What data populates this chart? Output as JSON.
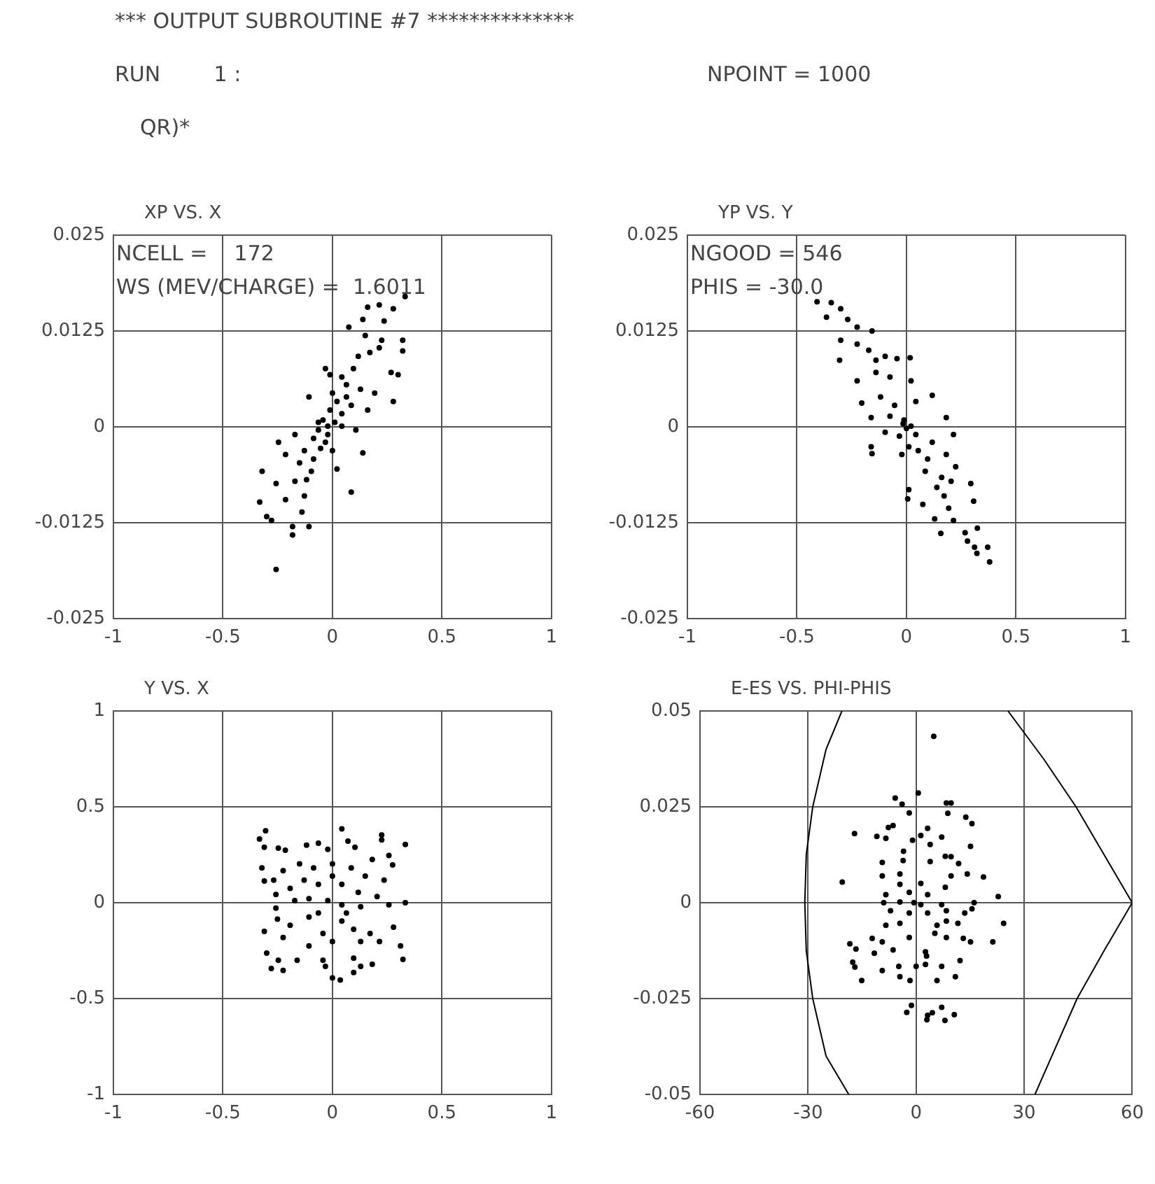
{
  "chart_data": [
    {
      "type": "other",
      "title": "*** OUTPUT SUBROUTINE #7 **************",
      "annotations": [
        "RUN        1 :",
        "NPOINT = 1000",
        "QR)*"
      ]
    },
    {
      "type": "scatter",
      "title": "XP VS. X",
      "color": "#000000",
      "marker": "circle",
      "xlim": [
        -1,
        1
      ],
      "ylim": [
        -0.025,
        0.025
      ],
      "xticks": [
        -1,
        -0.5,
        0,
        0.5,
        1
      ],
      "yticks": [
        -0.025,
        -0.0125,
        0,
        0.0125,
        0.025
      ],
      "grid": true,
      "annotations": [
        "NCELL =    172",
        "WS (MEV/CHARGE) =  1.6011"
      ],
      "x": [
        0.332,
        0.161,
        0.214,
        0.278,
        0.139,
        0.236,
        0.15,
        0.225,
        0.321,
        0.321,
        0.171,
        0.118,
        0.075,
        0.214,
        0.268,
        0.3,
        0.096,
        0.043,
        -0.032,
        -0.011,
        0.064,
        0.128,
        0.193,
        0.278,
        -0.107,
        0,
        0.021,
        0.086,
        0.161,
        -0.011,
        -0.043,
        0.011,
        0.043,
        0.107,
        0.139,
        -0.064,
        -0.021,
        -0.086,
        -0.032,
        -0.054,
        0,
        0.021,
        0.086,
        -0.171,
        -0.246,
        -0.214,
        -0.128,
        -0.086,
        -0.15,
        -0.096,
        -0.118,
        -0.321,
        -0.257,
        -0.171,
        -0.214,
        -0.128,
        -0.332,
        -0.3,
        -0.278,
        -0.139,
        -0.182,
        -0.182,
        -0.107,
        -0.257,
        -0.064,
        -0.021,
        0.043,
        0.064
      ],
      "values": [
        0.017,
        0.0156,
        0.0159,
        0.0154,
        0.014,
        0.0138,
        0.0119,
        0.0113,
        0.0113,
        0.0099,
        0.0097,
        0.0092,
        0.013,
        0.0103,
        0.0071,
        0.0068,
        0.0076,
        0.0065,
        0.0076,
        0.0068,
        0.0055,
        0.0049,
        0.0044,
        0.0033,
        0.0039,
        0.0044,
        0.0033,
        0.0028,
        0.0022,
        0.0022,
        0.0009,
        0.0006,
        0.0001,
        -0.0004,
        -0.0034,
        -0.0004,
        -0.001,
        -0.0015,
        -0.002,
        -0.0028,
        -0.0031,
        -0.0055,
        -0.0085,
        -0.001,
        -0.002,
        -0.0036,
        -0.0031,
        -0.0042,
        -0.0047,
        -0.0058,
        -0.0069,
        -0.0058,
        -0.0074,
        -0.0071,
        -0.0095,
        -0.009,
        -0.0098,
        -0.0117,
        -0.0122,
        -0.0111,
        -0.013,
        -0.0141,
        -0.013,
        -0.0186,
        0.0006,
        0.0001,
        0.0017,
        0.0039
      ]
    },
    {
      "type": "scatter",
      "title": "YP VS. Y",
      "color": "#000000",
      "marker": "circle",
      "xlim": [
        -1,
        1
      ],
      "ylim": [
        -0.025,
        0.025
      ],
      "xticks": [
        -1,
        -0.5,
        0,
        0.5,
        1
      ],
      "yticks": [
        -0.025,
        -0.0125,
        0,
        0.0125,
        0.025
      ],
      "grid": true,
      "annotations": [
        "NGOOD = 546",
        "PHIS = -30.0"
      ],
      "x": [
        -0.408,
        -0.343,
        -0.3,
        -0.365,
        -0.268,
        -0.225,
        -0.157,
        -0.3,
        -0.225,
        -0.172,
        -0.305,
        -0.139,
        -0.097,
        -0.043,
        0.017,
        -0.225,
        -0.139,
        -0.075,
        0.021,
        0.118,
        -0.204,
        -0.118,
        -0.054,
        0.043,
        -0.161,
        -0.075,
        -0.011,
        0.021,
        0.182,
        -0.097,
        -0.032,
        0.043,
        0.118,
        0.215,
        -0.161,
        -0.157,
        -0.021,
        0.054,
        0.097,
        0.182,
        0.011,
        0.086,
        0.225,
        0.161,
        0.011,
        0.006,
        0.075,
        0.139,
        0.204,
        0.294,
        0.307,
        0.172,
        0.193,
        0.215,
        0.129,
        0.157,
        0.268,
        0.279,
        0.324,
        0.311,
        0.371,
        0.38,
        0.322,
        0,
        -0.015
      ],
      "values": [
        0.0163,
        0.0162,
        0.0154,
        0.0143,
        0.014,
        0.013,
        0.0125,
        0.0113,
        0.0108,
        0.01,
        0.0087,
        0.0087,
        0.0092,
        0.0089,
        0.009,
        0.006,
        0.0071,
        0.0065,
        0.006,
        0.0041,
        0.0031,
        0.0039,
        0.0028,
        0.0033,
        0.0012,
        0.0014,
        0.0009,
        0.0001,
        0.0012,
        -0.0007,
        -0.0012,
        -0.001,
        -0.002,
        -0.001,
        -0.0026,
        -0.0035,
        -0.0036,
        -0.0031,
        -0.0042,
        -0.0036,
        -0.0026,
        -0.0058,
        -0.0052,
        -0.0066,
        -0.0082,
        -0.0094,
        -0.0101,
        -0.0079,
        -0.0071,
        -0.0074,
        -0.0097,
        -0.009,
        -0.0106,
        -0.0122,
        -0.012,
        -0.0139,
        -0.0138,
        -0.0149,
        -0.0132,
        -0.0157,
        -0.0157,
        -0.0176,
        -0.0165,
        -0.0002,
        0.0004
      ]
    },
    {
      "type": "scatter",
      "title": "Y VS. X",
      "color": "#000000",
      "marker": "circle",
      "xlim": [
        -1,
        1
      ],
      "ylim": [
        -1,
        1
      ],
      "xticks": [
        -1,
        -0.5,
        0,
        0.5,
        1
      ],
      "yticks": [
        -1,
        -0.5,
        0,
        0.5,
        1
      ],
      "grid": true,
      "x": [
        -0.305,
        -0.333,
        -0.311,
        -0.247,
        -0.215,
        -0.118,
        -0.064,
        -0.021,
        0.043,
        0.071,
        0.103,
        0.225,
        0.225,
        0.333,
        0.182,
        0.258,
        0.275,
        -0.322,
        -0.225,
        -0.15,
        -0.086,
        0,
        0.086,
        0.15,
        0.236,
        -0.311,
        -0.268,
        -0.258,
        -0.193,
        -0.129,
        -0.064,
        0,
        0.043,
        0.118,
        0.204,
        0.333,
        -0.258,
        -0.172,
        -0.107,
        -0.021,
        0.043,
        0.129,
        0.258,
        -0.251,
        -0.193,
        -0.107,
        -0.043,
        0.043,
        0.097,
        0.172,
        0.279,
        -0.311,
        -0.225,
        -0.107,
        0,
        0.129,
        0.215,
        0.311,
        0.322,
        -0.3,
        -0.247,
        -0.279,
        -0.225,
        -0.161,
        -0.043,
        -0.032,
        0,
        0.036,
        0.097,
        0.097,
        0.129,
        0.182,
        -0.064,
        0.064
      ],
      "values": [
        0.375,
        0.332,
        0.289,
        0.285,
        0.274,
        0.3,
        0.31,
        0.278,
        0.385,
        0.321,
        0.289,
        0.353,
        0.328,
        0.304,
        0.225,
        0.246,
        0.197,
        0.182,
        0.167,
        0.203,
        0.182,
        0.203,
        0.182,
        0.139,
        0.118,
        0.113,
        0.118,
        0.043,
        0.075,
        0.118,
        0.096,
        0.139,
        0.096,
        0.054,
        0.032,
        0,
        -0.028,
        0.011,
        0.021,
        0.011,
        -0.011,
        -0.021,
        -0.011,
        -0.086,
        -0.118,
        -0.075,
        -0.161,
        -0.096,
        -0.139,
        -0.161,
        -0.128,
        -0.15,
        -0.182,
        -0.225,
        -0.203,
        -0.203,
        -0.203,
        -0.225,
        -0.296,
        -0.263,
        -0.3,
        -0.343,
        -0.353,
        -0.3,
        -0.3,
        -0.332,
        -0.392,
        -0.403,
        -0.289,
        -0.364,
        -0.332,
        -0.321,
        -0.054,
        -0.054
      ]
    },
    {
      "type": "scatter",
      "title": "E-ES VS. PHI-PHIS",
      "marker": "circle",
      "xlim": [
        -60,
        60
      ],
      "ylim": [
        -0.05,
        0.05
      ],
      "xticks": [
        -60,
        -30,
        0,
        30,
        60
      ],
      "yticks": [
        -0.05,
        -0.025,
        0,
        0.025,
        0.05
      ],
      "grid": true,
      "series": [
        {
          "type": "scatter",
          "color": "#000000",
          "x": [
            4.9,
            -5.8,
            -3.9,
            0.6,
            8.4,
            9.7,
            -1.9,
            8.8,
            -17.1,
            -10.9,
            -8.4,
            -7.7,
            -6.4,
            3.2,
            7.1,
            13.8,
            15.5,
            -1.0,
            1.3,
            3.9,
            15.1,
            -3.5,
            8.1,
            9.7,
            -3.6,
            3.9,
            11.8,
            -9.4,
            14.2,
            18.7,
            -20.5,
            -9.4,
            -4.5,
            -4.5,
            1.3,
            8.1,
            9.7,
            -8.4,
            -1.9,
            3.2,
            22.8,
            -9.0,
            -4.5,
            -0.6,
            1.3,
            7.1,
            16.1,
            -7.1,
            -1.9,
            3.2,
            8.4,
            13.5,
            15.5,
            24.3,
            -8.4,
            -4.5,
            5.8,
            8.4,
            11.6,
            -12.2,
            -9.4,
            -1.9,
            5.2,
            8.4,
            13.1,
            15.1,
            21.3,
            -18.4,
            -16.7,
            -11.6,
            -6.4,
            2.6,
            2.9,
            12.2,
            -17.6,
            -17,
            -9.4,
            -4.8,
            0,
            2.6,
            7.1,
            10.9,
            -15.1,
            -4.5,
            -1.7,
            5.8,
            -2.6,
            -1.3,
            3,
            3.2,
            4.5,
            7.1,
            10.6,
            8.0
          ],
          "values": [
            0.0434,
            0.0273,
            0.0257,
            0.0286,
            0.026,
            0.026,
            0.0234,
            0.0233,
            0.018,
            0.0173,
            0.0168,
            0.0196,
            0.0201,
            0.0194,
            0.0171,
            0.0223,
            0.0206,
            0.0163,
            0.0175,
            0.0152,
            0.0147,
            0.0134,
            0.0121,
            0.012,
            0.011,
            0.0107,
            0.0102,
            0.0105,
            0.0075,
            0.0067,
            0.0054,
            0.007,
            0.0075,
            0.0048,
            0.005,
            0.004,
            0.007,
            0.0021,
            0.0027,
            0.0021,
            0.0016,
            0,
            0.0002,
            0,
            -0.0005,
            -0.0005,
            0,
            -0.0021,
            -0.0027,
            -0.0027,
            -0.0021,
            -0.0027,
            -0.0016,
            -0.0054,
            -0.0059,
            -0.0054,
            -0.0059,
            -0.0048,
            -0.0054,
            -0.0093,
            -0.0102,
            -0.0091,
            -0.008,
            -0.0091,
            -0.0093,
            -0.0102,
            -0.0102,
            -0.0107,
            -0.0121,
            -0.0132,
            -0.0123,
            -0.0128,
            -0.0139,
            -0.0151,
            -0.0155,
            -0.0168,
            -0.0177,
            -0.0166,
            -0.0166,
            -0.0161,
            -0.0166,
            -0.0193,
            -0.0203,
            -0.0193,
            -0.0203,
            -0.0203,
            -0.0286,
            -0.0268,
            -0.0305,
            -0.0294,
            -0.0287,
            -0.0273,
            -0.0292,
            -0.0307
          ]
        },
        {
          "type": "line",
          "color": "#000000",
          "marker": "none",
          "x": [
            -20.6,
            -25,
            -28.7,
            -30.5,
            -30.9,
            -30.5,
            -28.7,
            -25,
            -18.7
          ],
          "values": [
            0.05,
            0.04,
            0.025,
            0.0125,
            0,
            -0.0125,
            -0.025,
            -0.04,
            -0.05
          ]
        },
        {
          "type": "line",
          "color": "#000000",
          "marker": "none",
          "x": [
            25.5,
            35.4,
            44.4,
            52.2,
            60,
            52.2,
            44.7,
            33
          ],
          "values": [
            0.05,
            0.0375,
            0.025,
            0.0125,
            0,
            -0.0125,
            -0.025,
            -0.05
          ]
        }
      ]
    }
  ]
}
